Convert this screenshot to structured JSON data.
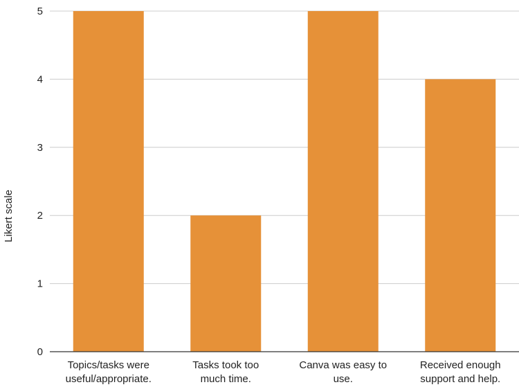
{
  "chart_data": {
    "type": "bar",
    "categories": [
      "Topics/tasks were useful/appropriate.",
      "Tasks took too much time.",
      "Canva was easy to use.",
      "Received enough support and help."
    ],
    "category_lines": [
      [
        "Topics/tasks were",
        "useful/appropriate."
      ],
      [
        "Tasks took too",
        "much time."
      ],
      [
        "Canva was easy to",
        "use."
      ],
      [
        "Received enough",
        "support and help."
      ]
    ],
    "values": [
      5,
      2,
      5,
      4
    ],
    "ylabel": "Likert scale",
    "ylim": [
      0,
      5
    ],
    "yticks": [
      "0",
      "1",
      "2",
      "3",
      "4",
      "5"
    ],
    "grid": true,
    "bar_color": "#E69138",
    "grid_color": "#CCCCCC",
    "axis_color": "#333333"
  }
}
